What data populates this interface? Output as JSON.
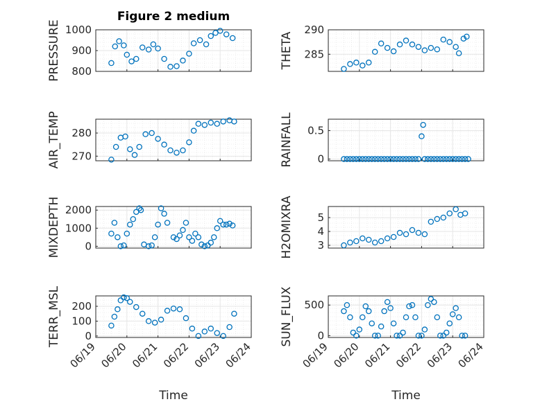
{
  "figure": {
    "title": "Figure 2 medium"
  },
  "colors": {
    "marker": "#0072BD",
    "axis": "#262626",
    "grid": "#e6e6e6"
  },
  "chart_data": [
    {
      "type": "scatter",
      "ylabel": "PRESSURE",
      "ylim": [
        800,
        1000
      ],
      "yticks": [
        {
          "v": 800,
          "label": "800"
        },
        {
          "v": 900,
          "label": "900"
        },
        {
          "v": 1000,
          "label": "1000"
        }
      ],
      "xlim": [
        0,
        5
      ],
      "xticks": [],
      "xlabel": "",
      "grid": true,
      "x": [
        0.5,
        0.62,
        0.75,
        0.9,
        1.0,
        1.15,
        1.3,
        1.5,
        1.7,
        1.85,
        2.0,
        2.2,
        2.4,
        2.6,
        2.8,
        3.0,
        3.15,
        3.35,
        3.55,
        3.7,
        3.85,
        4.0,
        4.2,
        4.4
      ],
      "y": [
        840,
        920,
        945,
        925,
        880,
        848,
        860,
        915,
        905,
        930,
        910,
        860,
        822,
        825,
        852,
        885,
        935,
        950,
        930,
        970,
        985,
        995,
        978,
        960
      ]
    },
    {
      "type": "scatter",
      "ylabel": "THETA",
      "ylim": [
        281.5,
        290
      ],
      "yticks": [
        {
          "v": 285,
          "label": "285"
        },
        {
          "v": 290,
          "label": "290"
        }
      ],
      "xlim": [
        0,
        5
      ],
      "xticks": [],
      "xlabel": "",
      "grid": true,
      "x": [
        0.5,
        0.7,
        0.9,
        1.1,
        1.3,
        1.5,
        1.7,
        1.9,
        2.1,
        2.3,
        2.5,
        2.7,
        2.9,
        3.1,
        3.3,
        3.5,
        3.7,
        3.9,
        4.1,
        4.2,
        4.35,
        4.45
      ],
      "y": [
        282.0,
        283.0,
        283.3,
        282.7,
        283.3,
        285.5,
        287.2,
        286.3,
        285.6,
        287.0,
        287.8,
        287.0,
        286.5,
        285.8,
        286.3,
        286.0,
        288.0,
        287.5,
        286.5,
        285.2,
        288.2,
        288.6
      ]
    },
    {
      "type": "scatter",
      "ylabel": "AIR_TEMP",
      "ylim": [
        268,
        286
      ],
      "yticks": [
        {
          "v": 270,
          "label": "270"
        },
        {
          "v": 280,
          "label": "280"
        }
      ],
      "xlim": [
        0,
        5
      ],
      "xticks": [],
      "xlabel": "",
      "grid": true,
      "x": [
        0.5,
        0.65,
        0.8,
        0.95,
        1.1,
        1.25,
        1.4,
        1.6,
        1.8,
        2.0,
        2.2,
        2.4,
        2.6,
        2.8,
        3.0,
        3.15,
        3.3,
        3.5,
        3.7,
        3.9,
        4.1,
        4.3,
        4.45
      ],
      "y": [
        268.5,
        274.0,
        278.0,
        278.5,
        273.0,
        270.5,
        274.0,
        279.5,
        280.0,
        277.5,
        275.0,
        272.5,
        271.5,
        272.5,
        276.0,
        281.0,
        284.0,
        283.5,
        284.5,
        284.0,
        285.0,
        285.5,
        285.0
      ]
    },
    {
      "type": "scatter",
      "ylabel": "RAINFALL",
      "ylim": [
        -0.03,
        0.7
      ],
      "yticks": [
        {
          "v": 0,
          "label": "0"
        },
        {
          "v": 0.5,
          "label": "0.5"
        }
      ],
      "xlim": [
        0,
        5
      ],
      "xticks": [],
      "xlabel": "",
      "grid": true,
      "x": [
        0.5,
        0.6,
        0.7,
        0.8,
        0.9,
        1.0,
        1.1,
        1.2,
        1.3,
        1.4,
        1.5,
        1.6,
        1.7,
        1.8,
        1.9,
        2.0,
        2.1,
        2.2,
        2.3,
        2.4,
        2.5,
        2.6,
        2.7,
        2.8,
        2.9,
        3.0,
        3.05,
        3.1,
        3.2,
        3.3,
        3.4,
        3.5,
        3.6,
        3.7,
        3.8,
        3.9,
        4.0,
        4.1,
        4.2,
        4.3,
        4.4,
        4.5
      ],
      "y": [
        0,
        0,
        0,
        0,
        0,
        0,
        0,
        0,
        0,
        0,
        0,
        0,
        0,
        0,
        0,
        0,
        0,
        0,
        0,
        0,
        0,
        0,
        0,
        0,
        0,
        0.4,
        0.6,
        0,
        0,
        0,
        0,
        0,
        0,
        0,
        0,
        0,
        0,
        0,
        0,
        0,
        0,
        0
      ]
    },
    {
      "type": "scatter",
      "ylabel": "MIXDEPTH",
      "ylim": [
        -100,
        2200
      ],
      "yticks": [
        {
          "v": 0,
          "label": "0"
        },
        {
          "v": 1000,
          "label": "1000"
        },
        {
          "v": 2000,
          "label": "2000"
        }
      ],
      "xlim": [
        0,
        5
      ],
      "xticks": [],
      "xlabel": "",
      "grid": true,
      "x": [
        0.5,
        0.6,
        0.7,
        0.8,
        0.9,
        1.0,
        1.1,
        1.2,
        1.3,
        1.4,
        1.45,
        1.55,
        1.7,
        1.8,
        1.9,
        2.0,
        2.1,
        2.2,
        2.3,
        2.5,
        2.6,
        2.7,
        2.8,
        2.9,
        3.0,
        3.1,
        3.2,
        3.3,
        3.4,
        3.5,
        3.6,
        3.7,
        3.8,
        3.9,
        4.0,
        4.1,
        4.2,
        4.3,
        4.4
      ],
      "y": [
        700,
        1300,
        500,
        0,
        50,
        700,
        1200,
        1500,
        1900,
        2100,
        2000,
        100,
        0,
        50,
        500,
        1200,
        2100,
        1800,
        1300,
        500,
        400,
        600,
        900,
        1300,
        500,
        300,
        700,
        500,
        100,
        0,
        50,
        200,
        500,
        1000,
        1400,
        1200,
        1200,
        1250,
        1150
      ]
    },
    {
      "type": "scatter",
      "ylabel": "H2OMIXRA",
      "ylim": [
        2.8,
        5.8
      ],
      "yticks": [
        {
          "v": 3,
          "label": "3"
        },
        {
          "v": 4,
          "label": "4"
        },
        {
          "v": 5,
          "label": "5"
        }
      ],
      "xlim": [
        0,
        5
      ],
      "xticks": [],
      "xlabel": "",
      "grid": true,
      "x": [
        0.5,
        0.7,
        0.9,
        1.1,
        1.3,
        1.5,
        1.7,
        1.9,
        2.1,
        2.3,
        2.5,
        2.7,
        2.9,
        3.1,
        3.3,
        3.5,
        3.7,
        3.9,
        4.1,
        4.25,
        4.4
      ],
      "y": [
        3.0,
        3.2,
        3.3,
        3.5,
        3.4,
        3.2,
        3.3,
        3.5,
        3.6,
        3.9,
        3.8,
        4.1,
        3.9,
        3.8,
        4.7,
        4.9,
        5.0,
        5.3,
        5.6,
        5.2,
        5.3
      ]
    },
    {
      "type": "scatter",
      "ylabel": "TERR_MSL",
      "ylim": [
        -10,
        270
      ],
      "yticks": [
        {
          "v": 0,
          "label": "0"
        },
        {
          "v": 100,
          "label": "100"
        },
        {
          "v": 200,
          "label": "200"
        }
      ],
      "xlim": [
        0,
        5
      ],
      "xticks": [
        {
          "v": 0,
          "label": "06/19"
        },
        {
          "v": 1,
          "label": "06/20"
        },
        {
          "v": 2,
          "label": "06/21"
        },
        {
          "v": 3,
          "label": "06/22"
        },
        {
          "v": 4,
          "label": "06/23"
        },
        {
          "v": 5,
          "label": "06/24"
        }
      ],
      "xlabel": "Time",
      "grid": true,
      "x": [
        0.5,
        0.6,
        0.7,
        0.8,
        0.9,
        1.0,
        1.1,
        1.3,
        1.5,
        1.7,
        1.9,
        2.1,
        2.3,
        2.5,
        2.7,
        2.9,
        3.1,
        3.3,
        3.5,
        3.7,
        3.9,
        4.1,
        4.3,
        4.45
      ],
      "y": [
        70,
        130,
        180,
        240,
        260,
        255,
        230,
        195,
        150,
        100,
        90,
        110,
        170,
        185,
        180,
        120,
        50,
        0,
        30,
        50,
        20,
        0,
        60,
        150
      ]
    },
    {
      "type": "scatter",
      "ylabel": "SUN_FLUX",
      "ylim": [
        -30,
        650
      ],
      "yticks": [
        {
          "v": 0,
          "label": "0"
        },
        {
          "v": 500,
          "label": "500"
        }
      ],
      "xlim": [
        0,
        5
      ],
      "xticks": [
        {
          "v": 0,
          "label": "06/19"
        },
        {
          "v": 1,
          "label": "06/20"
        },
        {
          "v": 2,
          "label": "06/21"
        },
        {
          "v": 3,
          "label": "06/22"
        },
        {
          "v": 4,
          "label": "06/23"
        },
        {
          "v": 5,
          "label": "06/24"
        }
      ],
      "xlabel": "Time",
      "grid": true,
      "x": [
        0.5,
        0.6,
        0.7,
        0.8,
        0.9,
        1.0,
        1.1,
        1.2,
        1.3,
        1.4,
        1.5,
        1.6,
        1.7,
        1.8,
        1.9,
        2.0,
        2.1,
        2.2,
        2.3,
        2.4,
        2.5,
        2.6,
        2.7,
        2.8,
        2.9,
        3.0,
        3.1,
        3.2,
        3.3,
        3.4,
        3.5,
        3.6,
        3.7,
        3.8,
        3.9,
        4.0,
        4.1,
        4.2,
        4.3,
        4.4
      ],
      "y": [
        400,
        500,
        300,
        50,
        0,
        100,
        300,
        480,
        400,
        200,
        0,
        0,
        150,
        400,
        550,
        450,
        200,
        0,
        0,
        50,
        300,
        480,
        500,
        300,
        0,
        0,
        100,
        500,
        600,
        550,
        300,
        0,
        0,
        50,
        200,
        350,
        450,
        300,
        0,
        0
      ]
    }
  ]
}
